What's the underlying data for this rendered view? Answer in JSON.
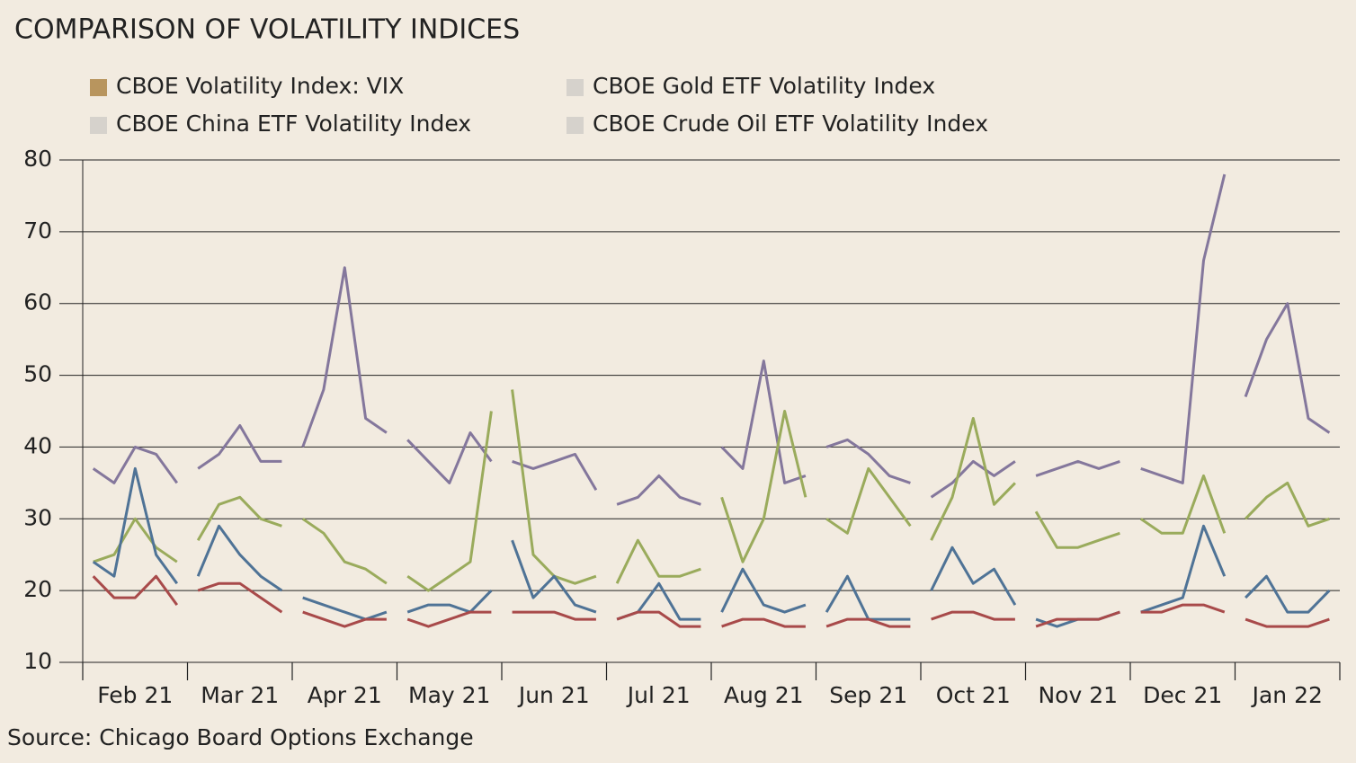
{
  "chart_data": {
    "type": "line",
    "title": "COMPARISON OF VOLATILITY INDICES",
    "source": "Source: Chicago Board Options Exchange",
    "categories": [
      "Feb 21",
      "Mar 21",
      "Apr 21",
      "May 21",
      "Jun 21",
      "Jul 21",
      "Aug 21",
      "Sep 21",
      "Oct 21",
      "Nov 21",
      "Dec 21",
      "Jan 22"
    ],
    "x": [
      0.1,
      0.3,
      0.5,
      0.7,
      0.9,
      1,
      1.1,
      1.3,
      1.5,
      1.7,
      1.9,
      2,
      2.1,
      2.3,
      2.5,
      2.7,
      2.9,
      3,
      3.1,
      3.3,
      3.5,
      3.7,
      3.9,
      4,
      4.1,
      4.3,
      4.5,
      4.7,
      4.9,
      5,
      5.1,
      5.3,
      5.5,
      5.7,
      5.9,
      6,
      6.1,
      6.3,
      6.5,
      6.7,
      6.9,
      7,
      7.1,
      7.3,
      7.5,
      7.7,
      7.9,
      8,
      8.1,
      8.3,
      8.5,
      8.7,
      8.9,
      9,
      9.1,
      9.3,
      9.5,
      9.7,
      9.9,
      10,
      10.1,
      10.3,
      10.5,
      10.7,
      10.9,
      11,
      11.1,
      11.3,
      11.5,
      11.7,
      11.9
    ],
    "xlim": [
      0,
      12
    ],
    "ylim": [
      10,
      80
    ],
    "yticks": [
      10,
      20,
      30,
      40,
      50,
      60,
      70,
      80
    ],
    "grid": true,
    "series": [
      {
        "name": "CBOE Volatility Index: VIX",
        "color": "#4f7396",
        "legend_color": "#b8955e",
        "values": [
          24,
          22,
          37,
          25,
          21,
          null,
          22,
          29,
          25,
          22,
          20,
          null,
          19,
          18,
          17,
          16,
          17,
          null,
          17,
          18,
          18,
          17,
          20,
          null,
          27,
          19,
          22,
          18,
          17,
          null,
          16,
          17,
          21,
          16,
          16,
          null,
          17,
          23,
          18,
          17,
          18,
          null,
          17,
          22,
          16,
          16,
          16,
          null,
          20,
          26,
          21,
          23,
          18,
          null,
          16,
          15,
          16,
          16,
          17,
          null,
          17,
          18,
          19,
          29,
          22,
          null,
          19,
          22,
          17,
          17,
          20
        ]
      },
      {
        "name": "CBOE China ETF Volatility Index",
        "color": "#9aab5c",
        "legend_color": "#d6d2cc",
        "values": [
          24,
          25,
          30,
          26,
          24,
          null,
          27,
          32,
          33,
          30,
          29,
          null,
          30,
          28,
          24,
          23,
          21,
          null,
          22,
          20,
          22,
          24,
          45,
          null,
          48,
          25,
          22,
          21,
          22,
          null,
          21,
          27,
          22,
          22,
          23,
          null,
          33,
          24,
          30,
          45,
          33,
          null,
          30,
          28,
          37,
          33,
          29,
          null,
          27,
          33,
          44,
          32,
          35,
          null,
          31,
          26,
          26,
          27,
          28,
          null,
          30,
          28,
          28,
          36,
          28,
          null,
          30,
          33,
          35,
          29,
          30
        ]
      },
      {
        "name": "CBOE Gold ETF Volatility Index",
        "color": "#a84a4a",
        "legend_color": "#d6d2cc",
        "values": [
          22,
          19,
          19,
          22,
          18,
          null,
          20,
          21,
          21,
          19,
          17,
          null,
          17,
          16,
          15,
          16,
          16,
          null,
          16,
          15,
          16,
          17,
          17,
          null,
          17,
          17,
          17,
          16,
          16,
          null,
          16,
          17,
          17,
          15,
          15,
          null,
          15,
          16,
          16,
          15,
          15,
          null,
          15,
          16,
          16,
          15,
          15,
          null,
          16,
          17,
          17,
          16,
          16,
          null,
          15,
          16,
          16,
          16,
          17,
          null,
          17,
          17,
          18,
          18,
          17,
          null,
          16,
          15,
          15,
          15,
          16
        ]
      },
      {
        "name": "CBOE Crude Oil ETF Volatility Index",
        "color": "#84779c",
        "legend_color": "#d6d2cc",
        "values": [
          37,
          35,
          40,
          39,
          35,
          null,
          37,
          39,
          43,
          38,
          38,
          null,
          40,
          48,
          65,
          44,
          42,
          null,
          41,
          38,
          35,
          42,
          38,
          null,
          38,
          37,
          38,
          39,
          34,
          null,
          32,
          33,
          36,
          33,
          32,
          null,
          40,
          37,
          52,
          35,
          36,
          null,
          40,
          41,
          39,
          36,
          35,
          null,
          33,
          35,
          38,
          36,
          38,
          null,
          36,
          37,
          38,
          37,
          38,
          null,
          37,
          36,
          35,
          66,
          78,
          null,
          47,
          55,
          60,
          44,
          42
        ]
      }
    ]
  }
}
